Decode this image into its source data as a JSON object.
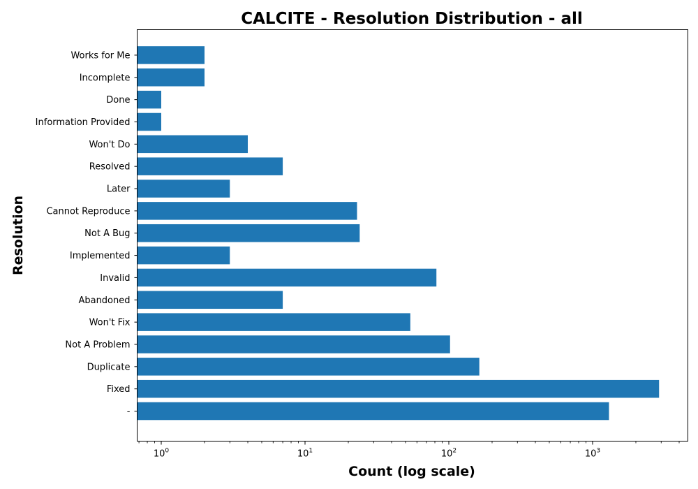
{
  "chart_data": {
    "type": "bar",
    "orientation": "horizontal",
    "title": "CALCITE - Resolution Distribution - all",
    "xlabel": "Count (log scale)",
    "ylabel": "Resolution",
    "xscale": "log",
    "xlim": [
      0.68,
      4600
    ],
    "grid": false,
    "bar_color": "#1f77b4",
    "categories": [
      "-",
      "Fixed",
      "Duplicate",
      "Not A Problem",
      "Won't Fix",
      "Abandoned",
      "Invalid",
      "Implemented",
      "Not A Bug",
      "Cannot Reproduce",
      "Later",
      "Resolved",
      "Won't Do",
      "Information Provided",
      "Done",
      "Incomplete",
      "Works for Me"
    ],
    "values": [
      1300,
      2900,
      163,
      102,
      54,
      7,
      82,
      3,
      24,
      23,
      3,
      7,
      4,
      1,
      1,
      2,
      2
    ],
    "xticks": [
      {
        "value": 1,
        "base": "10",
        "exp": "0"
      },
      {
        "value": 10,
        "base": "10",
        "exp": "1"
      },
      {
        "value": 100,
        "base": "10",
        "exp": "2"
      },
      {
        "value": 1000,
        "base": "10",
        "exp": "3"
      }
    ]
  }
}
